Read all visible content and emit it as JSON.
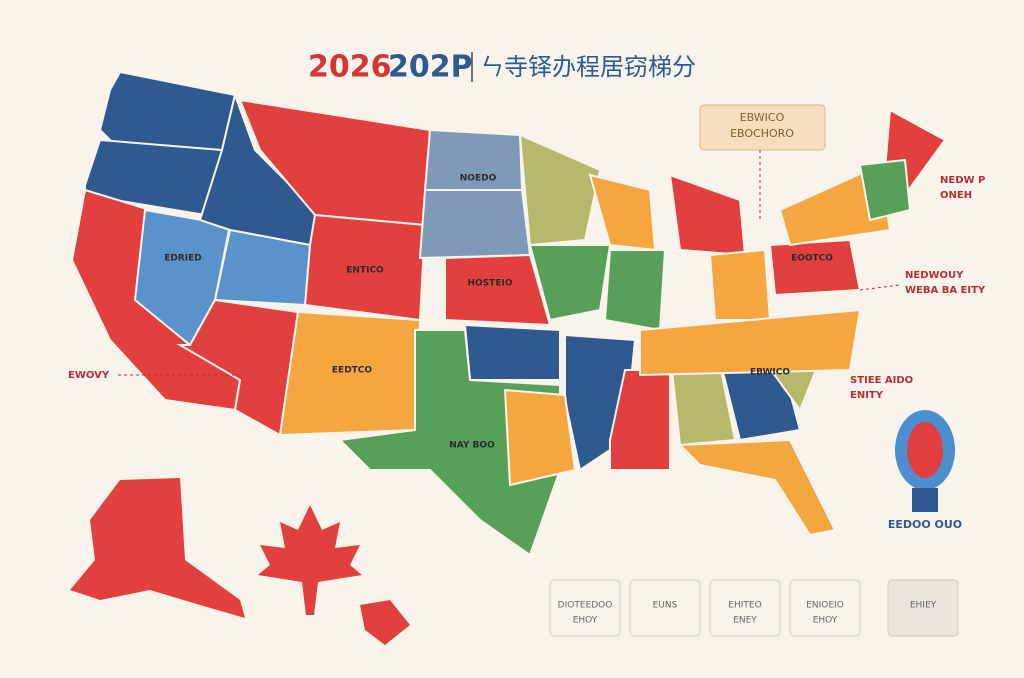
{
  "header": {
    "title_year": "2026",
    "title_code": "202P",
    "subtitle": "ㄣ寺铎办程居窃梯分"
  },
  "callout": {
    "lines": [
      "EBWICO",
      "EBOCHORO"
    ]
  },
  "state_labels": [
    "NOEDO",
    "EDRIED",
    "ENTICO",
    "HOSTEIO",
    "EEDTCO",
    "NAY BOO",
    "EBWICO",
    "EOOTCO"
  ],
  "side_labels": [
    {
      "lines": [
        "NEDW P",
        "ONEH"
      ]
    },
    {
      "lines": [
        "NEDWOUY",
        "WEBA BA EITY"
      ]
    },
    {
      "lines": [
        "STIEE AIDO",
        "ENITY"
      ]
    },
    {
      "lines": [
        "EWOVY"
      ]
    }
  ],
  "legend_boxes": [
    {
      "lines": [
        "DIOTEEDOO",
        "EHOY"
      ]
    },
    {
      "lines": [
        "EUNS"
      ]
    },
    {
      "lines": [
        "EHITEO",
        "ENEY"
      ]
    },
    {
      "lines": [
        "ENIOEIO",
        "EHOY"
      ]
    },
    {
      "lines": [
        "EHIEY"
      ]
    }
  ],
  "logo_text": "EEDOO OUO"
}
